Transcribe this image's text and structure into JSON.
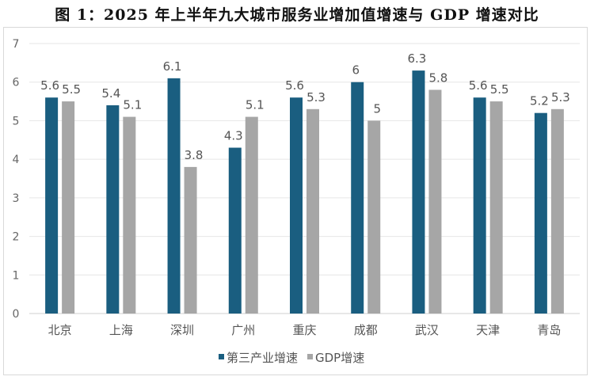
{
  "chart_data": {
    "type": "bar",
    "title": "图 1：2025 年上半年九大城市服务业增加值增速与 GDP 增速对比",
    "xlabel": "",
    "ylabel": "",
    "ylim": [
      0,
      7
    ],
    "yticks": [
      0,
      1,
      2,
      3,
      4,
      5,
      6,
      7
    ],
    "grid": true,
    "legend_position": "bottom",
    "categories": [
      "北京",
      "上海",
      "深圳",
      "广州",
      "重庆",
      "成都",
      "武汉",
      "天津",
      "青岛"
    ],
    "series": [
      {
        "name": "第三产业增速",
        "color": "#1a5e80",
        "values": [
          5.6,
          5.4,
          6.1,
          4.3,
          5.6,
          6,
          6.3,
          5.6,
          5.2
        ]
      },
      {
        "name": "GDP增速",
        "color": "#a6a6a6",
        "values": [
          5.5,
          5.1,
          3.8,
          5.1,
          5.3,
          5,
          5.8,
          5.5,
          5.3
        ]
      }
    ]
  }
}
